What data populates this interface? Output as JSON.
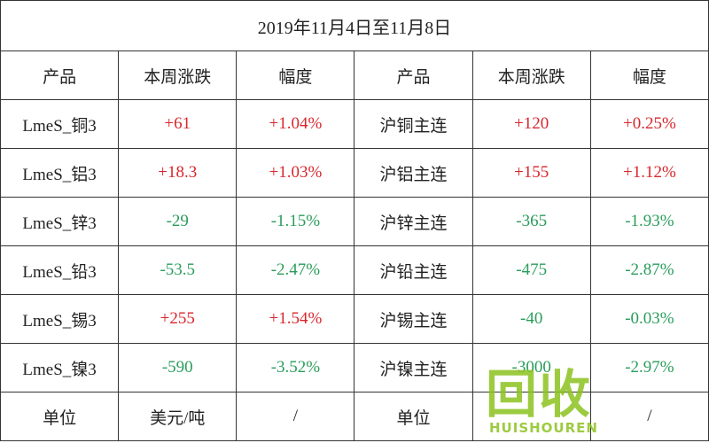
{
  "table": {
    "title": "2019年11月4日至11月8日",
    "header": [
      "产品",
      "本周涨跌",
      "幅度",
      "产品",
      "本周涨跌",
      "幅度"
    ],
    "rows": [
      [
        "LmeS_铜3",
        "+61",
        "+1.04%",
        "沪铜主连",
        "+120",
        "+0.25%"
      ],
      [
        "LmeS_铝3",
        "+18.3",
        "+1.03%",
        "沪铝主连",
        "+155",
        "+1.12%"
      ],
      [
        "LmeS_锌3",
        "-29",
        "-1.15%",
        "沪锌主连",
        "-365",
        "-1.93%"
      ],
      [
        "LmeS_铅3",
        "-53.5",
        "-2.47%",
        "沪铅主连",
        "-475",
        "-2.87%"
      ],
      [
        "LmeS_锡3",
        "+255",
        "+1.54%",
        "沪锡主连",
        "-40",
        "-0.03%"
      ],
      [
        "LmeS_镍3",
        "-590",
        "-3.52%",
        "沪镍主连",
        "-3000",
        "-2.97%"
      ]
    ],
    "footer": [
      "单位",
      "美元/吨",
      "/",
      "单位",
      null,
      "/"
    ],
    "up_color": "#d9262c",
    "down_color": "#2a9d5c"
  },
  "watermark": {
    "logo": "回收",
    "brand": "HUISHOUREN"
  }
}
